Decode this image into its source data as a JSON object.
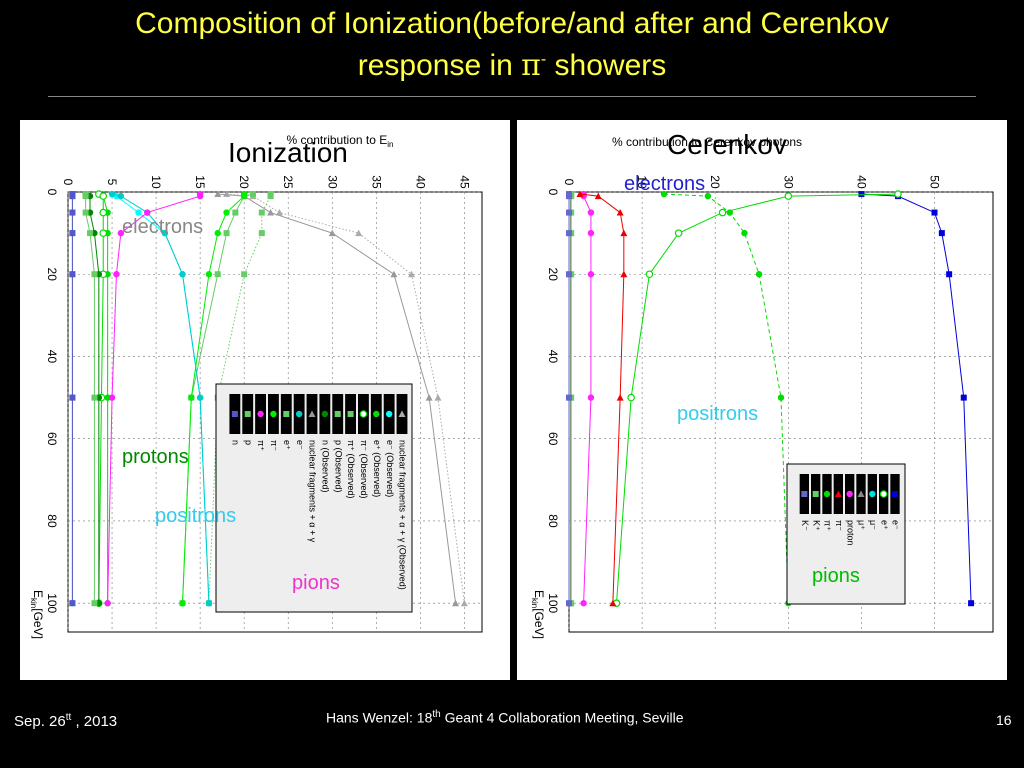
{
  "slide": {
    "title_line1": "Composition of Ionization(before/and after and Cerenkov",
    "title_line2_pre": "response  in ",
    "title_pi": "π",
    "title_sup": "-",
    "title_line2_post": " showers",
    "footer_date": "Sep.  26",
    "footer_date_sup": "tt",
    "footer_year": " , 2013",
    "footer_author": "Hans Wenzel:    18",
    "footer_conf_sup": "th",
    "footer_conf": " Geant 4 Collaboration Meeting, Seville",
    "page_number": "16"
  },
  "chart_data": [
    {
      "type": "line",
      "title": "Ionization",
      "ylabel": "% contribution to E",
      "ylabel_sub": "in",
      "xlabel": "E",
      "xlabel_sub": "kin",
      "xlabel_unit": "[GeV]",
      "ylim": [
        0,
        47
      ],
      "xlim": [
        -3,
        107
      ],
      "y_ticks": [
        0,
        5,
        10,
        15,
        20,
        25,
        30,
        35,
        40,
        45
      ],
      "x_ticks": [
        0,
        20,
        40,
        60,
        80,
        100
      ],
      "grid": true,
      "legend_position": "center-right",
      "annotations": [
        {
          "text": "electrons",
          "color": "#888888"
        },
        {
          "text": "protons",
          "color": "#008800"
        },
        {
          "text": "positrons",
          "color": "#33ccee"
        },
        {
          "text": "pions",
          "color": "#ee33cc"
        }
      ],
      "x": [
        0.5,
        1,
        5,
        10,
        20,
        50,
        100
      ],
      "series": [
        {
          "name": "nuclear fragments + α + γ (Observed)",
          "color": "#aaaaaa",
          "marker": "triangle",
          "dash": "dotted",
          "values": [
            18,
            21,
            24,
            33,
            39,
            42,
            45
          ]
        },
        {
          "name": "e⁻ (Observed)",
          "color": "#00ffff",
          "marker": "circle",
          "dash": "solid",
          "values": [
            5,
            5.5,
            8,
            11,
            13,
            15,
            16
          ]
        },
        {
          "name": "e⁺ (Observed)",
          "color": "#00dd00",
          "marker": "circle",
          "dash": "solid",
          "values": [
            3.5,
            4,
            4.5,
            4.5,
            4.5,
            4.5,
            4.5
          ]
        },
        {
          "name": "π⁻ (Observed)",
          "color": "#00dd00",
          "marker": "circle-open",
          "dash": "solid",
          "values": [
            3.5,
            4,
            4,
            4,
            4,
            3.8,
            3.5
          ]
        },
        {
          "name": "π⁺ (Observed)",
          "color": "#66cc66",
          "marker": "square",
          "dash": "solid",
          "values": [
            21,
            20,
            19,
            18,
            17,
            14,
            13
          ]
        },
        {
          "name": "p (Observed)",
          "color": "#66cc66",
          "marker": "square",
          "dash": "dotted",
          "values": [
            23,
            23,
            22,
            22,
            20,
            17,
            16
          ]
        },
        {
          "name": "n (Observed)",
          "color": "#008800",
          "marker": "circle",
          "dash": "solid",
          "values": [
            2,
            2.5,
            2.5,
            3,
            3.5,
            3.5,
            3.5
          ]
        },
        {
          "name": "nuclear fragments + α + γ",
          "color": "#999999",
          "marker": "triangle",
          "dash": "solid",
          "values": [
            17,
            20,
            23,
            30,
            37,
            41,
            44
          ]
        },
        {
          "name": "e⁻",
          "color": "#00cccc",
          "marker": "circle",
          "dash": "solid",
          "values": [
            5,
            6,
            9,
            11,
            13,
            15,
            16
          ]
        },
        {
          "name": "e⁺",
          "color": "#66cc66",
          "marker": "square",
          "dash": "solid",
          "values": [
            2,
            2,
            2,
            2.5,
            3,
            3,
            3
          ]
        },
        {
          "name": "π⁻",
          "color": "#00ee00",
          "marker": "circle",
          "dash": "solid",
          "values": [
            20,
            20,
            18,
            17,
            16,
            14,
            13
          ]
        },
        {
          "name": "π⁺",
          "color": "#ff22ff",
          "marker": "circle",
          "dash": "solid",
          "values": [
            15,
            15,
            9,
            6,
            5.5,
            5,
            4.5
          ]
        },
        {
          "name": "p",
          "color": "#66cc66",
          "marker": "square",
          "dash": "solid",
          "values": [
            0.5,
            0.5,
            0.5,
            0.5,
            0.5,
            0.5,
            0.5
          ]
        },
        {
          "name": "n",
          "color": "#5555cc",
          "marker": "square",
          "dash": "solid",
          "values": [
            0.5,
            0.5,
            0.5,
            0.5,
            0.5,
            0.5,
            0.5
          ]
        }
      ]
    },
    {
      "type": "line",
      "title": "Cerenkov",
      "ylabel": "% contribution to Cerenkov photons",
      "xlabel": "E",
      "xlabel_sub": "kin",
      "xlabel_unit": "[GeV]",
      "ylim": [
        0,
        58
      ],
      "xlim": [
        -3,
        107
      ],
      "y_ticks": [
        0,
        10,
        20,
        30,
        40,
        50
      ],
      "x_ticks": [
        0,
        20,
        40,
        60,
        80,
        100
      ],
      "grid": true,
      "legend_position": "center-right",
      "annotations": [
        {
          "text": "electrons",
          "color": "#2222cc"
        },
        {
          "text": "positrons",
          "color": "#33ccee"
        },
        {
          "text": "pions",
          "color": "#00bb00"
        }
      ],
      "x": [
        0.5,
        1,
        5,
        10,
        20,
        50,
        100
      ],
      "series": [
        {
          "name": "e⁻",
          "color": "#0000dd",
          "marker": "square",
          "dash": "solid",
          "values": [
            40,
            45,
            50,
            51,
            52,
            54,
            55
          ]
        },
        {
          "name": "e⁺",
          "color": "#00dd00",
          "marker": "circle-open",
          "dash": "solid",
          "values": [
            45,
            30,
            21,
            15,
            11,
            8.5,
            6.5
          ]
        },
        {
          "name": "μ⁻",
          "color": "#00dddd",
          "marker": "circle",
          "dash": "solid",
          "values": [
            0.2,
            0.2,
            0.2,
            0.2,
            0.2,
            0.2,
            0.2
          ]
        },
        {
          "name": "μ⁺",
          "color": "#888888",
          "marker": "triangle",
          "dash": "solid",
          "values": [
            0.2,
            0.2,
            0.2,
            0.2,
            0.2,
            0.2,
            0.2
          ]
        },
        {
          "name": "proton",
          "color": "#ff22ff",
          "marker": "circle",
          "dash": "solid",
          "values": [
            2,
            2,
            3,
            3,
            3,
            3,
            2
          ]
        },
        {
          "name": "π⁻",
          "color": "#ee0000",
          "marker": "triangle",
          "dash": "solid",
          "values": [
            1.5,
            4,
            7,
            7.5,
            7.5,
            7,
            6
          ]
        },
        {
          "name": "π⁺",
          "color": "#00dd00",
          "marker": "circle",
          "dash": "dashed",
          "values": [
            13,
            19,
            22,
            24,
            26,
            29,
            30
          ]
        },
        {
          "name": "K⁺",
          "color": "#66cc66",
          "marker": "square",
          "dash": "solid",
          "values": [
            0.3,
            0.3,
            0.3,
            0.3,
            0.3,
            0.3,
            0.3
          ]
        },
        {
          "name": "K⁻",
          "color": "#6666cc",
          "marker": "square",
          "dash": "solid",
          "values": [
            0,
            0,
            0,
            0,
            0,
            0,
            0
          ]
        }
      ]
    }
  ]
}
